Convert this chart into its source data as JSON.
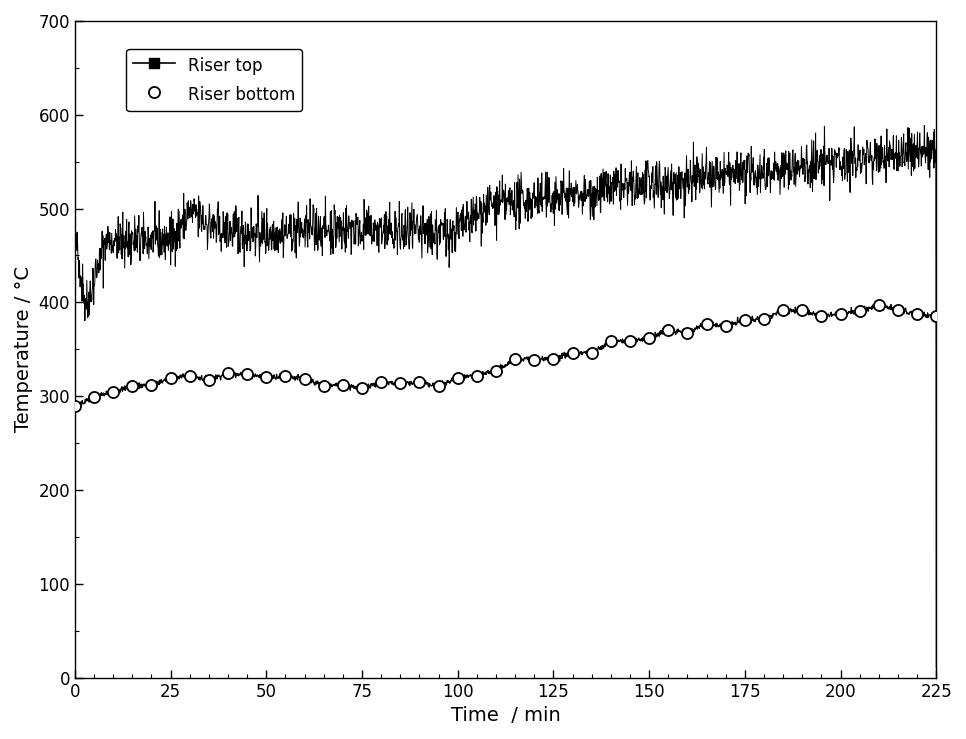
{
  "title": "",
  "xlabel": "Time  / min",
  "ylabel": "Temperature / °C",
  "xlim": [
    0,
    225
  ],
  "ylim": [
    0,
    700
  ],
  "xticks": [
    0,
    25,
    50,
    75,
    100,
    125,
    150,
    175,
    200,
    225
  ],
  "yticks": [
    0,
    100,
    200,
    300,
    400,
    500,
    600,
    700
  ],
  "legend_entries": [
    "Riser top",
    "Riser bottom"
  ],
  "riser_top_color": "#000000",
  "riser_bottom_color": "#000000",
  "background_color": "#ffffff",
  "figure_background": "#ffffff",
  "seed": 42
}
